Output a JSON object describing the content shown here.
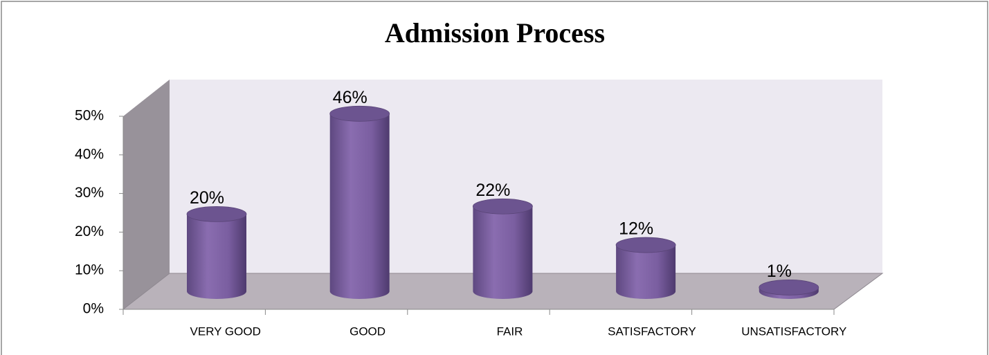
{
  "chart_data": {
    "type": "bar",
    "title": "Admission Process",
    "categories": [
      "VERY GOOD",
      "GOOD",
      "FAIR",
      "SATISFACTORY",
      "UNSATISFACTORY"
    ],
    "values": [
      20,
      46,
      22,
      12,
      1
    ],
    "value_labels": [
      "20%",
      "46%",
      "22%",
      "12%",
      "1%"
    ],
    "color": "#8064a2",
    "ylim": [
      0,
      50
    ],
    "yticks": [
      {
        "value": 0,
        "label": "0%"
      },
      {
        "value": 10,
        "label": "10%"
      },
      {
        "value": 20,
        "label": "20%"
      },
      {
        "value": 30,
        "label": "30%"
      },
      {
        "value": 40,
        "label": "40%"
      },
      {
        "value": 50,
        "label": "50%"
      }
    ]
  }
}
